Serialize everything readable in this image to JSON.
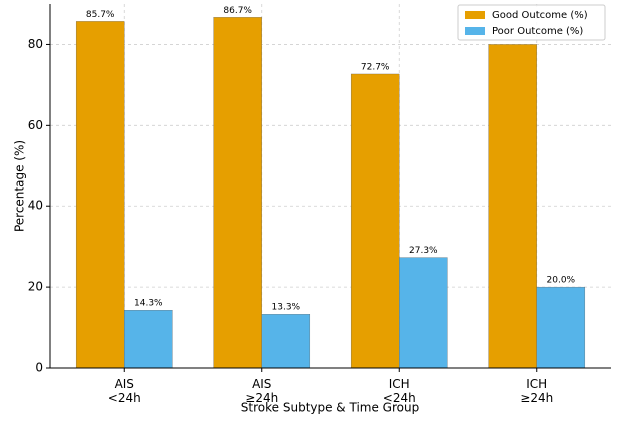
{
  "chart_data": {
    "type": "bar",
    "categories": [
      "AIS\n<24h",
      "AIS\n≥24h",
      "ICH\n<24h",
      "ICH\n≥24h"
    ],
    "series": [
      {
        "name": "Good Outcome (%)",
        "color": "#e69f00",
        "values": [
          85.7,
          86.7,
          72.7,
          80.0
        ],
        "value_labels": [
          "85.7%",
          "86.7%",
          "72.7%",
          null
        ]
      },
      {
        "name": "Poor Outcome (%)",
        "color": "#56b4e9",
        "values": [
          14.3,
          13.3,
          27.3,
          20.0
        ],
        "value_labels": [
          "14.3%",
          "13.3%",
          "27.3%",
          "20.0%"
        ]
      }
    ],
    "x_label": "Stroke Subtype & Time Group",
    "y_label": "Percentage (%)",
    "ylim": [
      0,
      90
    ],
    "yticks": [
      0,
      20,
      40,
      60,
      80
    ],
    "grid": true,
    "legend": "upper-right"
  }
}
